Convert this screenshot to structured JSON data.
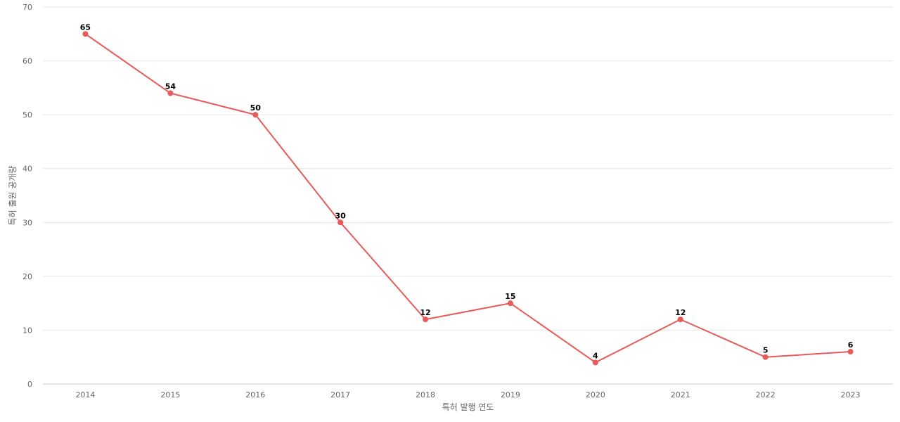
{
  "chart_data": {
    "type": "line",
    "categories": [
      "2014",
      "2015",
      "2016",
      "2017",
      "2018",
      "2019",
      "2020",
      "2021",
      "2022",
      "2023"
    ],
    "series": [
      {
        "values": [
          65,
          54,
          50,
          30,
          12,
          15,
          4,
          12,
          5,
          6
        ],
        "color": "#e85a5a"
      }
    ],
    "xlabel": "특허 발행 연도",
    "ylabel": "특허 출원 공개량",
    "ylim": [
      0,
      70
    ],
    "yticks": [
      0,
      10,
      20,
      30,
      40,
      50,
      60,
      70
    ],
    "grid": true,
    "data_labels": true
  }
}
